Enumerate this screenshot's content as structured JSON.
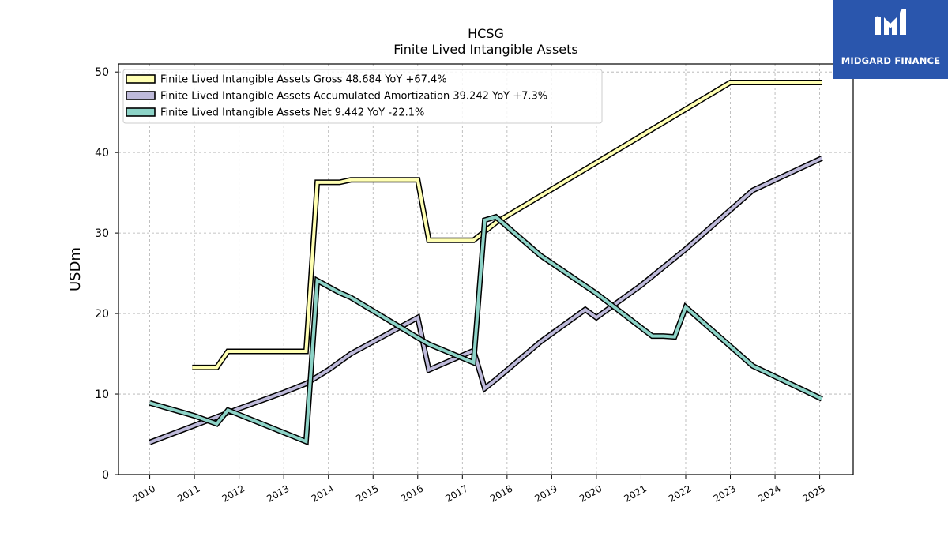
{
  "chart_data": {
    "type": "line",
    "title": "HCSG",
    "subtitle": "Finite Lived Intangible Assets",
    "xlabel": "",
    "ylabel": "USDm",
    "xlim": [
      2009.3,
      2025.75
    ],
    "ylim": [
      0,
      51
    ],
    "yticks": [
      0,
      10,
      20,
      30,
      40,
      50
    ],
    "xticks": [
      "2010",
      "2011",
      "2012",
      "2013",
      "2014",
      "2015",
      "2016",
      "2017",
      "2018",
      "2019",
      "2020",
      "2021",
      "2022",
      "2023",
      "2024",
      "2025"
    ],
    "grid": true,
    "legend_position": "top-left",
    "series": [
      {
        "name": "Finite Lived Intangible Assets Gross  48.684 YoY +67.4%",
        "color": "#ffffb3",
        "points": [
          [
            2010.95,
            13.3
          ],
          [
            2011.5,
            13.3
          ],
          [
            2011.75,
            15.3
          ],
          [
            2013.5,
            15.3
          ],
          [
            2013.75,
            36.3
          ],
          [
            2014.25,
            36.3
          ],
          [
            2014.5,
            36.6
          ],
          [
            2016.0,
            36.6
          ],
          [
            2016.25,
            29.1
          ],
          [
            2017.25,
            29.1
          ],
          [
            2017.75,
            31.3
          ],
          [
            2023.0,
            48.7
          ],
          [
            2025.05,
            48.7
          ]
        ]
      },
      {
        "name": "Finite Lived Intangible Assets Accumulated Amortization  39.242 YoY +7.3%",
        "color": "#bebada",
        "points": [
          [
            2010.0,
            4.0
          ],
          [
            2011.0,
            6.1
          ],
          [
            2012.0,
            8.2
          ],
          [
            2013.0,
            10.2
          ],
          [
            2013.5,
            11.3
          ],
          [
            2014.0,
            13.0
          ],
          [
            2014.5,
            15.0
          ],
          [
            2016.0,
            19.5
          ],
          [
            2016.25,
            13.0
          ],
          [
            2017.25,
            15.4
          ],
          [
            2017.5,
            10.7
          ],
          [
            2017.75,
            11.8
          ],
          [
            2018.75,
            16.5
          ],
          [
            2019.75,
            20.5
          ],
          [
            2020.0,
            19.5
          ],
          [
            2021.0,
            23.5
          ],
          [
            2022.0,
            28.0
          ],
          [
            2023.5,
            35.3
          ],
          [
            2025.05,
            39.3
          ]
        ]
      },
      {
        "name": "Finite Lived Intangible Assets Net  9.442 YoY -22.1%",
        "color": "#8dd3c7",
        "points": [
          [
            2010.0,
            8.9
          ],
          [
            2011.0,
            7.3
          ],
          [
            2011.5,
            6.3
          ],
          [
            2011.75,
            8.0
          ],
          [
            2013.5,
            4.1
          ],
          [
            2013.75,
            24.1
          ],
          [
            2014.25,
            22.6
          ],
          [
            2014.5,
            22.0
          ],
          [
            2016.0,
            17.0
          ],
          [
            2016.25,
            16.2
          ],
          [
            2017.25,
            13.9
          ],
          [
            2017.5,
            31.6
          ],
          [
            2017.75,
            32.0
          ],
          [
            2018.75,
            27.2
          ],
          [
            2020.0,
            22.5
          ],
          [
            2021.25,
            17.2
          ],
          [
            2021.5,
            17.2
          ],
          [
            2021.75,
            17.1
          ],
          [
            2022.0,
            20.8
          ],
          [
            2023.5,
            13.5
          ],
          [
            2025.05,
            9.4
          ]
        ]
      }
    ]
  },
  "branding": {
    "logo_text": "MIDGARD FINANCE",
    "logo_color": "#2a56ad"
  }
}
